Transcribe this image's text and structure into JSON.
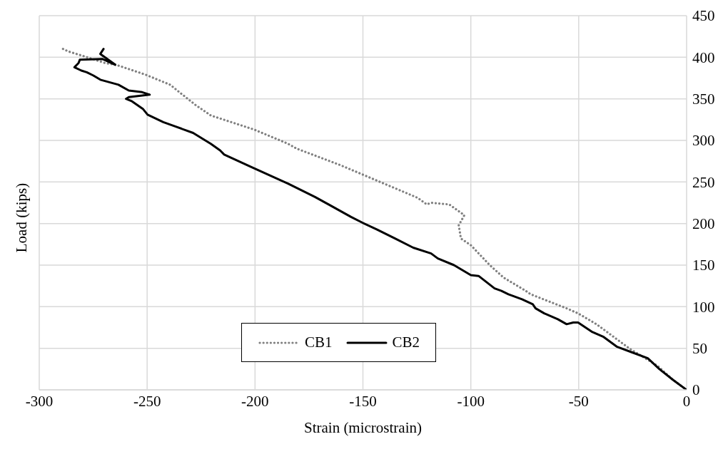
{
  "chart_data": {
    "type": "line",
    "xlabel": "Strain (microstrain)",
    "ylabel": "Load (kips)",
    "xlim": [
      -300,
      0
    ],
    "xticks": [
      -300,
      -250,
      -200,
      -150,
      -100,
      -50,
      0
    ],
    "ylim": [
      0,
      450
    ],
    "yticks": [
      0,
      50,
      100,
      150,
      200,
      250,
      300,
      350,
      400,
      450
    ],
    "grid": true,
    "legend": "bottom",
    "marker": "none",
    "series": [
      {
        "name": "CB1",
        "color": "#808080",
        "line_style": "dotted",
        "x": [
          -289,
          -286.5,
          -279,
          -269.5,
          -264.5,
          -250.7,
          -239.4,
          -227.8,
          -220.5,
          -200.4,
          -184.7,
          -180.6,
          -160.2,
          -150.2,
          -124.7,
          -120.4,
          -118.4,
          -110,
          -103,
          -105.6,
          -104.6,
          -100,
          -91.2,
          -84.8,
          -74.5,
          -72.3,
          -55.6,
          -50.3,
          -41.8,
          -26.1,
          -13.5,
          -6.3,
          0
        ],
        "values": [
          410,
          407,
          401,
          393,
          391,
          379,
          367,
          343,
          330,
          313,
          296,
          290,
          270,
          259,
          231,
          223,
          225,
          223,
          210,
          198,
          182,
          174,
          150,
          135,
          119,
          115,
          98,
          92,
          79,
          49,
          29,
          12,
          0
        ]
      },
      {
        "name": "CB2",
        "color": "#000000",
        "line_style": "solid",
        "x": [
          0,
          -6.3,
          -12.6,
          -18,
          -25.2,
          -32.4,
          -38.7,
          -44,
          -50.3,
          -52.5,
          -55.6,
          -59.7,
          -66,
          -70,
          -71.3,
          -76.3,
          -82.6,
          -85.8,
          -89,
          -96.4,
          -100,
          -107.8,
          -115.3,
          -118.4,
          -126.7,
          -135.1,
          -143.6,
          -150.2,
          -155.5,
          -165.9,
          -172.2,
          -184.7,
          -201.7,
          -214.3,
          -216.2,
          -220.5,
          -228.7,
          -237.2,
          -242.5,
          -249.8,
          -252,
          -257,
          -259.8,
          -258.5,
          -248.8,
          -252.3,
          -258.5,
          -263.3,
          -271.7,
          -274.9,
          -278,
          -280.5,
          -283.7,
          -281.8,
          -281.2,
          -270.8,
          -264.8,
          -271.7,
          -270.2
        ],
        "values": [
          0,
          12,
          25,
          38,
          45,
          52,
          64,
          70,
          81,
          81,
          79,
          85,
          92,
          98,
          103,
          109,
          115,
          119,
          122,
          137,
          138,
          150,
          158,
          164,
          171,
          182,
          193,
          201,
          208,
          223,
          232,
          248,
          268,
          283,
          288,
          296,
          309,
          317,
          322,
          331,
          338,
          347,
          350,
          352,
          355,
          358,
          360,
          367,
          373,
          378,
          382,
          384,
          388,
          393,
          397,
          398,
          391,
          404,
          410
        ]
      }
    ]
  }
}
